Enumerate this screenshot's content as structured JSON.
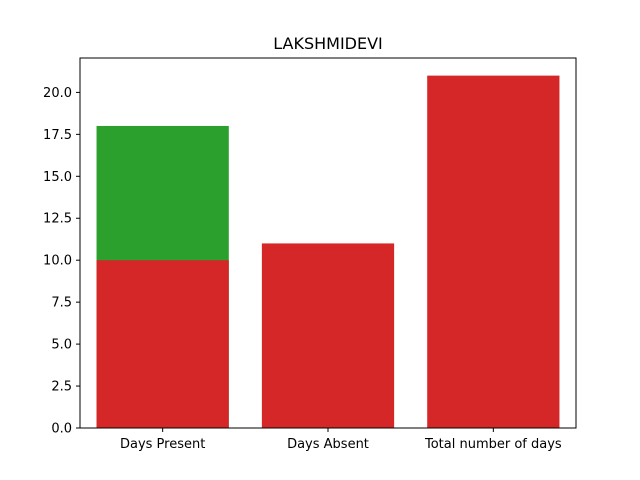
{
  "chart_data": {
    "type": "bar",
    "title": "LAKSHMIDEVI",
    "xlabel": "",
    "ylabel": "",
    "categories": [
      "Days Present",
      "Days Absent",
      "Total number of days"
    ],
    "series": [
      {
        "color": "#2ca02c",
        "values": [
          18,
          null,
          null
        ]
      },
      {
        "color": "#d62728",
        "values": [
          10,
          11,
          21
        ]
      }
    ],
    "ylim": [
      0,
      22.05
    ],
    "yticks": [
      0.0,
      2.5,
      5.0,
      7.5,
      10.0,
      12.5,
      15.0,
      17.5,
      20.0
    ],
    "ytick_labels": [
      "0.0",
      "2.5",
      "5.0",
      "7.5",
      "10.0",
      "12.5",
      "15.0",
      "17.5",
      "20.0"
    ],
    "grid": false,
    "legend": "none"
  }
}
